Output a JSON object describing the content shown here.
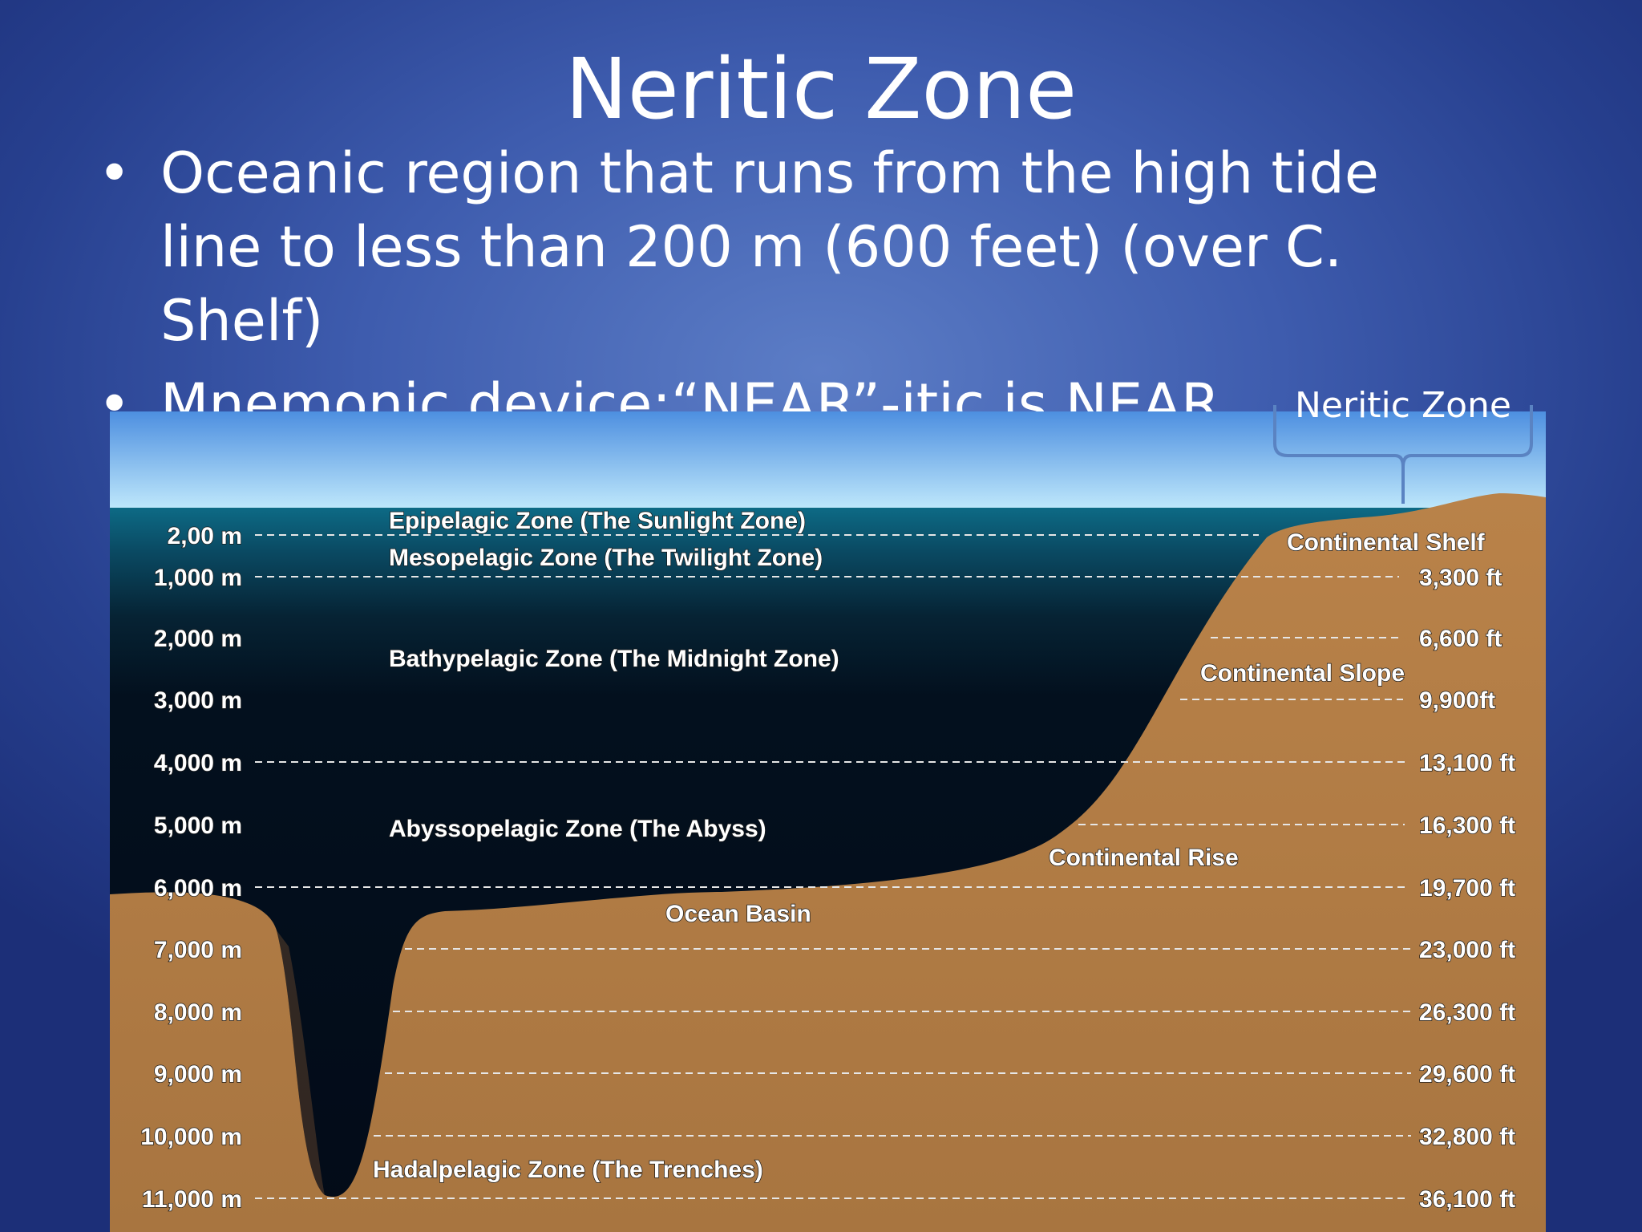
{
  "slide": {
    "title": "Neritic Zone",
    "bullets": [
      "Oceanic region that runs from the high tide line to less than 200 m (600 feet) (over C. Shelf)",
      "Mnemonic device:“NEAR”-itic is NEAR shore!"
    ]
  },
  "diagram": {
    "callout_label": "Neritic Zone",
    "zones": {
      "epipelagic": "Epipelagic Zone (The Sunlight Zone)",
      "mesopelagic": "Mesopelagic Zone (The Twilight Zone)",
      "bathypelagic": "Bathypelagic Zone (The Midnight Zone)",
      "abyssopelagic": "Abyssopelagic Zone (The Abyss)",
      "hadalpelagic": "Hadalpelagic Zone (The Trenches)"
    },
    "features": {
      "continental_shelf": "Continental Shelf",
      "continental_slope": "Continental Slope",
      "continental_rise": "Continental Rise",
      "ocean_basin": "Ocean Basin"
    },
    "depth_labels_m": [
      "2,00 m",
      "1,000 m",
      "2,000 m",
      "3,000 m",
      "4,000 m",
      "5,000 m",
      "6,000 m",
      "7,000 m",
      "8,000 m",
      "9,000 m",
      "10,000 m",
      "11,000 m"
    ],
    "depth_labels_ft": [
      "",
      "3,300 ft",
      "6,600 ft",
      "9,900ft",
      "13,100 ft",
      "16,300 ft",
      "19,700 ft",
      "23,000 ft",
      "26,300 ft",
      "29,600 ft",
      "32,800 ft",
      "36,100 ft"
    ],
    "colors": {
      "sky_top": "#4d8fe0",
      "sky_bottom": "#bfe8fb",
      "surface_water": "#0d6a85",
      "deep_water": "#030d1c",
      "seafloor": "#b37d48",
      "seafloor_dark": "#8d5d33",
      "callout": "#5a83c2"
    }
  }
}
